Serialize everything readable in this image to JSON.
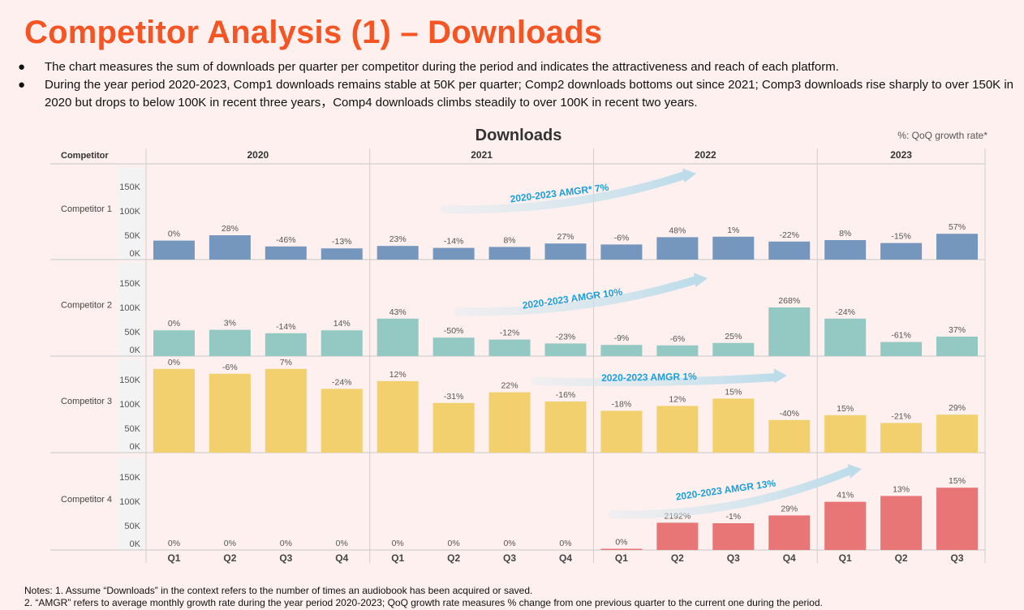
{
  "title": "Competitor Analysis (1) – Downloads",
  "bullets": [
    "The chart measures the sum of downloads per quarter per competitor during the period and indicates the attractiveness and reach of each platform.",
    "During the year period 2020-2023, Comp1 downloads remains stable at 50K per quarter; Comp2 downloads bottoms out since 2021; Comp3 downloads rise sharply to over 150K in 2020 but drops to below 100K in recent three years，Comp4 downloads climbs steadily to over 100K in recent two years."
  ],
  "bullet_symbol": "●",
  "notes": [
    "Notes: 1. Assume “Downloads” in the context refers to the number of times an audiobook has been acquired or saved.",
    "2. “AMGR” refers to average monthly growth rate during the year period 2020-2023; QoQ growth rate measures % change from one previous quarter to the current one during the period."
  ],
  "chart_data": {
    "type": "bar",
    "title": "Downloads",
    "subtitle": "%: QoQ growth rate*",
    "row_header": "Competitor",
    "years": [
      {
        "label": "2020",
        "quarters": [
          "Q1",
          "Q2",
          "Q3",
          "Q4"
        ]
      },
      {
        "label": "2021",
        "quarters": [
          "Q1",
          "Q2",
          "Q3",
          "Q4"
        ]
      },
      {
        "label": "2022",
        "quarters": [
          "Q1",
          "Q2",
          "Q3",
          "Q4"
        ]
      },
      {
        "label": "2023",
        "quarters": [
          "Q1",
          "Q2",
          "Q3"
        ]
      }
    ],
    "y_ticks": [
      {
        "value": 0,
        "label": "0K"
      },
      {
        "value": 50,
        "label": "50K"
      },
      {
        "value": 100,
        "label": "100K"
      },
      {
        "value": 150,
        "label": "150K"
      }
    ],
    "ylim": [
      0,
      175
    ],
    "unit": "K",
    "series": [
      {
        "name": "Competitor 1",
        "color": "#7597bd",
        "values": [
          39,
          50,
          27,
          23,
          28,
          24,
          26,
          33,
          31,
          46,
          47,
          37,
          40,
          34,
          53
        ],
        "growth_labels": [
          "0%",
          "28%",
          "-46%",
          "-13%",
          "23%",
          "-14%",
          "8%",
          "27%",
          "-6%",
          "48%",
          "1%",
          "-22%",
          "8%",
          "-15%",
          "57%"
        ],
        "amgr": "2020-2023 AMGR* 7%"
      },
      {
        "name": "Competitor 2",
        "color": "#94c8c3",
        "values": [
          53,
          54,
          47,
          53,
          77,
          38,
          34,
          26,
          23,
          22,
          27,
          100,
          77,
          29,
          40
        ],
        "growth_labels": [
          "0%",
          "3%",
          "-14%",
          "14%",
          "43%",
          "-50%",
          "-12%",
          "-23%",
          "-9%",
          "-6%",
          "25%",
          "268%",
          "-24%",
          "-61%",
          "37%"
        ],
        "amgr": "2020-2023 AMGR  10%"
      },
      {
        "name": "Competitor 3",
        "color": "#f1d06d",
        "values": [
          172,
          162,
          172,
          131,
          147,
          102,
          124,
          105,
          86,
          96,
          111,
          67,
          77,
          61,
          78
        ],
        "growth_labels": [
          "0%",
          "-6%",
          "7%",
          "-24%",
          "12%",
          "-31%",
          "22%",
          "-16%",
          "-18%",
          "12%",
          "15%",
          "-40%",
          "15%",
          "-21%",
          "29%"
        ],
        "amgr": "2020-2023 AMGR  1%"
      },
      {
        "name": "Competitor 4",
        "color": "#e87677",
        "values": [
          0,
          0,
          0,
          0,
          0,
          0,
          0,
          0,
          2,
          56,
          55,
          71,
          99,
          111,
          128
        ],
        "growth_labels": [
          "0%",
          "0%",
          "0%",
          "0%",
          "0%",
          "0%",
          "0%",
          "0%",
          "0%",
          "2192%",
          "-1%",
          "29%",
          "41%",
          "13%",
          "15%"
        ],
        "amgr": "2020-2023 AMGR  13%"
      }
    ]
  }
}
